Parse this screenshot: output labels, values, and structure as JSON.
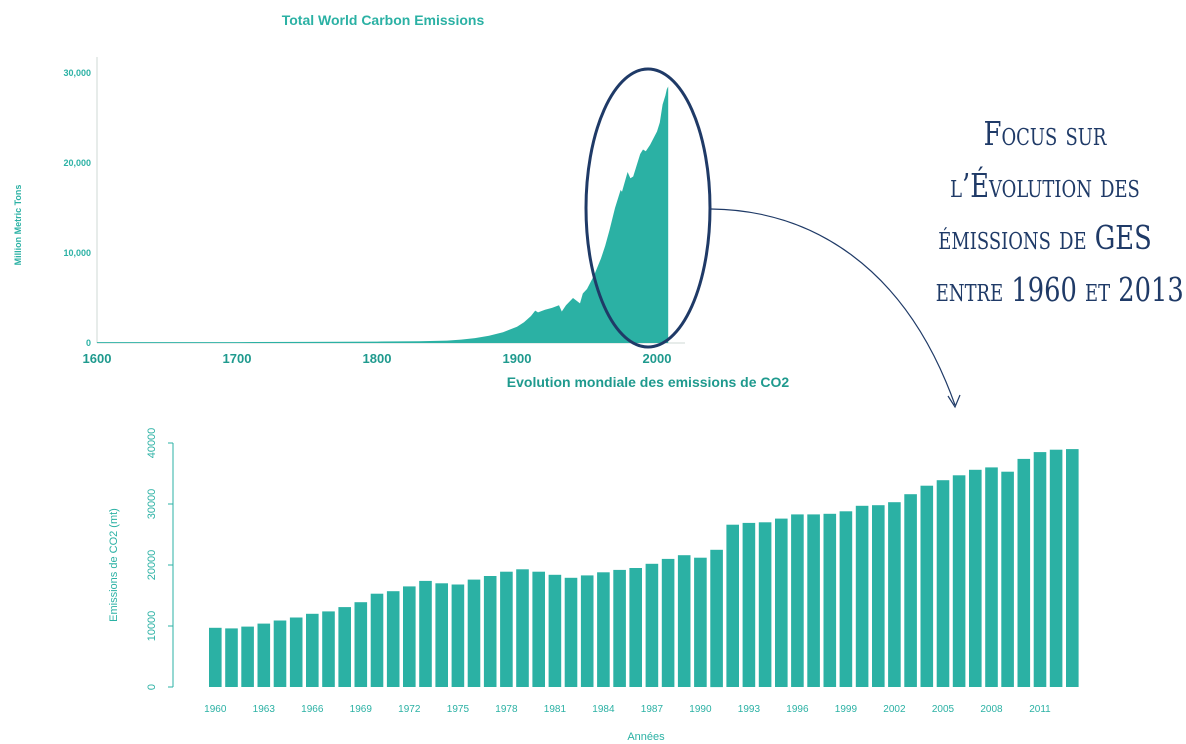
{
  "colors": {
    "teal": "#2bb1a4",
    "dark_teal": "#1f9a8e",
    "navy": "#1f3a67",
    "bar_axis": "#2bb1a4"
  },
  "annotation": {
    "lines": [
      "Focus sur",
      "l’Évolution des",
      "émissions de GES",
      "entre 1960 et 2013"
    ]
  },
  "chart_data": [
    {
      "type": "area",
      "title": "Total World Carbon Emissions",
      "subtitle": "Evolution mondiale des emissions de CO2",
      "xlabel": "",
      "ylabel": "Million Metric Tons",
      "xlim": [
        1600,
        2010
      ],
      "ylim": [
        0,
        30000
      ],
      "xticks": [
        "1600",
        "1700",
        "1800",
        "1900",
        "2000"
      ],
      "yticks": [
        "0",
        "10,000",
        "20,000",
        "30,000"
      ],
      "highlight_range": [
        1960,
        2008
      ],
      "x": [
        1600,
        1700,
        1750,
        1800,
        1830,
        1850,
        1860,
        1870,
        1880,
        1890,
        1900,
        1905,
        1910,
        1913,
        1915,
        1920,
        1925,
        1930,
        1932,
        1935,
        1940,
        1945,
        1947,
        1950,
        1955,
        1960,
        1963,
        1966,
        1970,
        1974,
        1975,
        1979,
        1981,
        1983,
        1985,
        1988,
        1990,
        1992,
        1995,
        2000,
        2002,
        2004,
        2005,
        2006,
        2007,
        2008
      ],
      "y": [
        100,
        100,
        120,
        150,
        200,
        270,
        380,
        550,
        800,
        1200,
        1800,
        2300,
        3000,
        3600,
        3400,
        3700,
        3900,
        4200,
        3500,
        4200,
        5000,
        4400,
        5500,
        6000,
        7500,
        9400,
        10800,
        12500,
        15000,
        17000,
        16800,
        19000,
        18300,
        18500,
        19500,
        21000,
        21500,
        21300,
        22000,
        23500,
        24500,
        26500,
        27000,
        27500,
        28200,
        28500
      ]
    },
    {
      "type": "bar",
      "title": "",
      "xlabel": "Années",
      "ylabel": "Emissions de CO2 (mt)",
      "ylim": [
        0,
        40000
      ],
      "yticks": [
        "0",
        "10000",
        "20000",
        "30000",
        "40000"
      ],
      "xtick_labels": [
        "1960",
        "1963",
        "1966",
        "1969",
        "1972",
        "1975",
        "1978",
        "1981",
        "1984",
        "1987",
        "1990",
        "1993",
        "1996",
        "1999",
        "2002",
        "2005",
        "2008",
        "2011"
      ],
      "categories": [
        "1960",
        "1961",
        "1962",
        "1963",
        "1964",
        "1965",
        "1966",
        "1967",
        "1968",
        "1969",
        "1970",
        "1971",
        "1972",
        "1973",
        "1974",
        "1975",
        "1976",
        "1977",
        "1978",
        "1979",
        "1980",
        "1981",
        "1982",
        "1983",
        "1984",
        "1985",
        "1986",
        "1987",
        "1988",
        "1989",
        "1990",
        "1991",
        "1992",
        "1993",
        "1994",
        "1995",
        "1996",
        "1997",
        "1998",
        "1999",
        "2000",
        "2001",
        "2002",
        "2003",
        "2004",
        "2005",
        "2006",
        "2007",
        "2008",
        "2009",
        "2010",
        "2011",
        "2012",
        "2013"
      ],
      "values": [
        9700,
        9600,
        9900,
        10400,
        10900,
        11400,
        12000,
        12400,
        13100,
        13900,
        15300,
        15700,
        16500,
        17400,
        17000,
        16800,
        17600,
        18200,
        18900,
        19300,
        18900,
        18400,
        17900,
        18300,
        18800,
        19200,
        19500,
        20200,
        21000,
        21600,
        21200,
        22500,
        26600,
        26900,
        27000,
        27600,
        28300,
        28300,
        28400,
        28800,
        29700,
        29800,
        30300,
        31600,
        33000,
        33900,
        34700,
        35600,
        36000,
        35300,
        37400,
        38500,
        38900,
        39000
      ]
    }
  ]
}
